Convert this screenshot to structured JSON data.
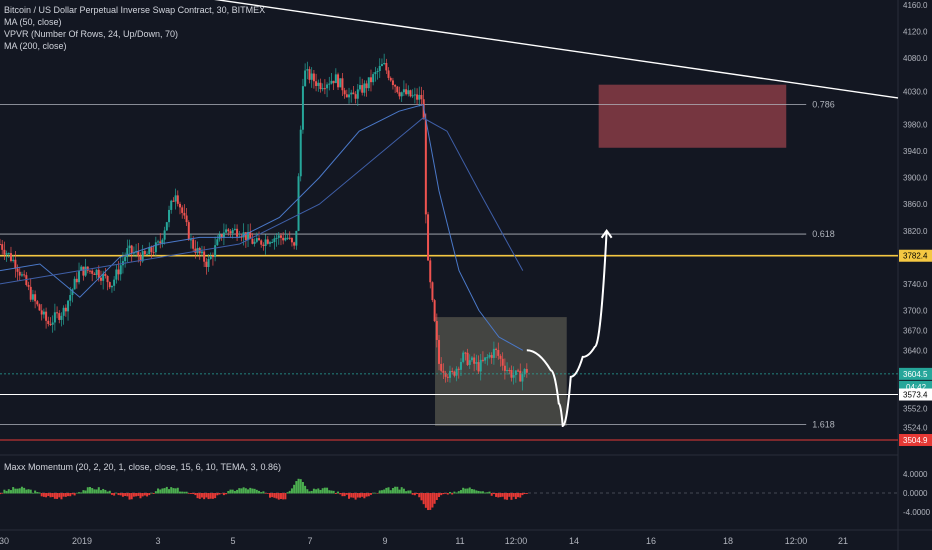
{
  "header": {
    "title": "Bitcoin / US Dollar Perpetual Inverse Swap Contract, 30, BITMEX",
    "studies": [
      "MA (50, close)",
      "VPVR (Number Of Rows, 24, Up/Down, 70)",
      "MA (200, close)"
    ]
  },
  "indicator": {
    "label": "Maxx Momentum (20, 2, 20, 1, close, close, 15, 6, 10, TEMA, 3, 0.86)",
    "ticks": [
      "4.0000",
      "0.0000",
      "-4.0000"
    ]
  },
  "chart_data": {
    "type": "candlestick",
    "symbol": "XBTUSD",
    "timeframe": "30",
    "exchange": "BITMEX",
    "price_axis_ticks": [
      4160.0,
      4120.0,
      4080.0,
      4030.0,
      3980.0,
      3940.0,
      3900.0,
      3860.0,
      3820.0,
      3782.4,
      3740.0,
      3700.0,
      3670.0,
      3640.0,
      3604.5,
      3573.4,
      3552.0,
      3524.0,
      3504.9
    ],
    "price_axis_labels": [
      "4160.0",
      "4120.0",
      "4080.0",
      "4030.0",
      "3980.0",
      "3940.0",
      "3900.0",
      "3860.0",
      "3820.0",
      "3782.4",
      "3740.0",
      "3700.0",
      "3670.0",
      "3640.0",
      "3604.5",
      "04:42",
      "3573.4",
      "3552.0",
      "3524.0",
      "3504.9"
    ],
    "time_axis_labels": [
      "30",
      "2019",
      "3",
      "5",
      "7",
      "9",
      "11",
      "12:00",
      "14",
      "16",
      "18",
      "12:00",
      "21"
    ],
    "current_price": "3604.5",
    "countdown": "04:42",
    "horizontal_levels": [
      {
        "price": 3782.4,
        "label": "3782.4",
        "color": "#f5c842"
      },
      {
        "price": 3573.4,
        "label": "3573.4",
        "color": "#ffffff"
      },
      {
        "price": 3504.9,
        "label": "3504.9",
        "color": "#e53935"
      }
    ],
    "fib_levels": [
      {
        "label": "0.786",
        "price": 4010
      },
      {
        "label": "0.618",
        "price": 3815
      },
      {
        "label": "1.618",
        "price": 3528
      }
    ],
    "price_path": [
      [
        0,
        3800
      ],
      [
        4,
        3770
      ],
      [
        8,
        3720
      ],
      [
        12,
        3680
      ],
      [
        16,
        3700
      ],
      [
        20,
        3760
      ],
      [
        24,
        3760
      ],
      [
        28,
        3740
      ],
      [
        32,
        3790
      ],
      [
        36,
        3780
      ],
      [
        40,
        3800
      ],
      [
        44,
        3880
      ],
      [
        48,
        3800
      ],
      [
        52,
        3770
      ],
      [
        56,
        3820
      ],
      [
        60,
        3820
      ],
      [
        64,
        3800
      ],
      [
        68,
        3810
      ],
      [
        72,
        3810
      ],
      [
        74,
        3790
      ],
      [
        76,
        4060
      ],
      [
        80,
        4040
      ],
      [
        84,
        4050
      ],
      [
        88,
        4020
      ],
      [
        92,
        4040
      ],
      [
        96,
        4070
      ],
      [
        100,
        4030
      ],
      [
        104,
        4020
      ],
      [
        106,
        4020
      ],
      [
        107,
        3780
      ],
      [
        110,
        3620
      ],
      [
        113,
        3600
      ],
      [
        116,
        3630
      ],
      [
        120,
        3615
      ],
      [
        124,
        3640
      ],
      [
        126,
        3620
      ],
      [
        128,
        3605
      ],
      [
        130,
        3600
      ],
      [
        132,
        3610
      ]
    ],
    "ma50": [
      [
        0,
        3760
      ],
      [
        10,
        3770
      ],
      [
        20,
        3720
      ],
      [
        30,
        3780
      ],
      [
        40,
        3800
      ],
      [
        50,
        3810
      ],
      [
        60,
        3810
      ],
      [
        70,
        3840
      ],
      [
        80,
        3900
      ],
      [
        90,
        3970
      ],
      [
        100,
        4000
      ],
      [
        106,
        4010
      ],
      [
        110,
        3880
      ],
      [
        115,
        3760
      ],
      [
        120,
        3700
      ],
      [
        125,
        3660
      ],
      [
        131,
        3640
      ]
    ],
    "ma200": [
      [
        0,
        3740
      ],
      [
        30,
        3770
      ],
      [
        60,
        3800
      ],
      [
        80,
        3860
      ],
      [
        100,
        3960
      ],
      [
        106,
        3990
      ],
      [
        112,
        3970
      ],
      [
        120,
        3880
      ],
      [
        131,
        3760
      ]
    ],
    "value_zone_box": {
      "x0": 109,
      "x1": 142,
      "top": 3690,
      "bottom": 3526
    },
    "target_zone_box": {
      "x0": 150,
      "x1": 197,
      "top": 4040,
      "bottom": 3945
    },
    "trendline": [
      [
        52,
        4170
      ],
      [
        225,
        4020
      ]
    ],
    "projection_path": [
      [
        132,
        3640
      ],
      [
        138,
        3610
      ],
      [
        140,
        3560
      ],
      [
        141,
        3526
      ],
      [
        143,
        3600
      ],
      [
        146,
        3630
      ],
      [
        149,
        3645
      ],
      [
        152,
        3820
      ]
    ]
  }
}
